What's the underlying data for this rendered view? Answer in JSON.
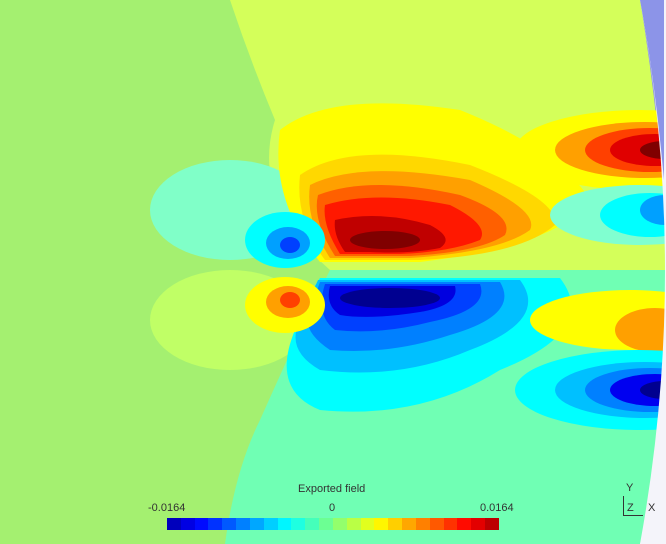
{
  "colorbar": {
    "title": "Exported field",
    "min_label": "-0.0164",
    "mid_label": "0",
    "max_label": "0.0164",
    "range": [
      -0.0164,
      0.0164
    ],
    "colormap": "jet",
    "bands": 24
  },
  "axes_triad": {
    "y": "Y",
    "z": "Z",
    "x": "X"
  },
  "colors": {
    "background_outside": "#8c94e8",
    "field_zero_left": "#a4f070",
    "field_positive_low": "#d4ff5a",
    "field_negative_low": "#70ffb4"
  }
}
